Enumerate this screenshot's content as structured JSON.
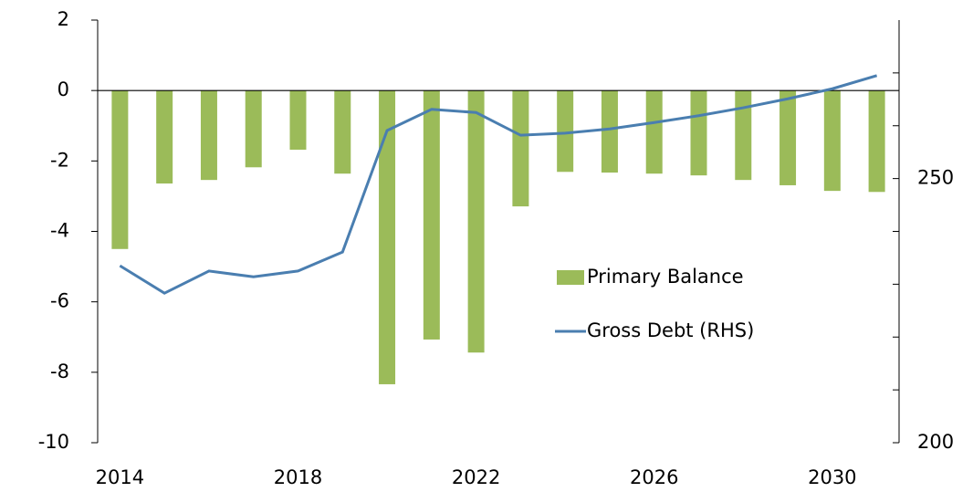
{
  "chart_data": {
    "type": "bar-line",
    "categories": [
      "2014",
      null,
      null,
      null,
      "2018",
      null,
      null,
      null,
      "2022",
      null,
      null,
      null,
      "2026",
      null,
      null,
      null,
      "2030",
      null
    ],
    "series": [
      {
        "name": "Primary Balance",
        "type": "bar",
        "color": "#9bbb59",
        "values": [
          -4.5,
          -2.64,
          -2.54,
          -2.18,
          -1.68,
          -2.36,
          -8.34,
          -7.07,
          -7.44,
          -3.29,
          -2.31,
          -2.33,
          -2.36,
          -2.41,
          -2.54,
          -2.69,
          -2.85,
          -2.88
        ]
      },
      {
        "name": "Gross Debt (RHS)",
        "type": "line",
        "axis": "y2",
        "color": "#4a7eb0",
        "values": [
          233.5,
          228.3,
          232.5,
          231.4,
          232.5,
          236.1,
          259.1,
          263.1,
          262.5,
          258.2,
          258.6,
          259.4,
          260.6,
          261.9,
          263.4,
          265.1,
          267.0,
          269.5
        ]
      }
    ],
    "ylim": [
      -10,
      2
    ],
    "yticks": [
      -10,
      -8,
      -6,
      -4,
      -2,
      0,
      2
    ],
    "y2lim": [
      200,
      280
    ],
    "y2ticks": [
      200,
      250
    ],
    "y2minorticks": [
      210,
      220,
      230,
      240,
      260,
      270
    ]
  }
}
